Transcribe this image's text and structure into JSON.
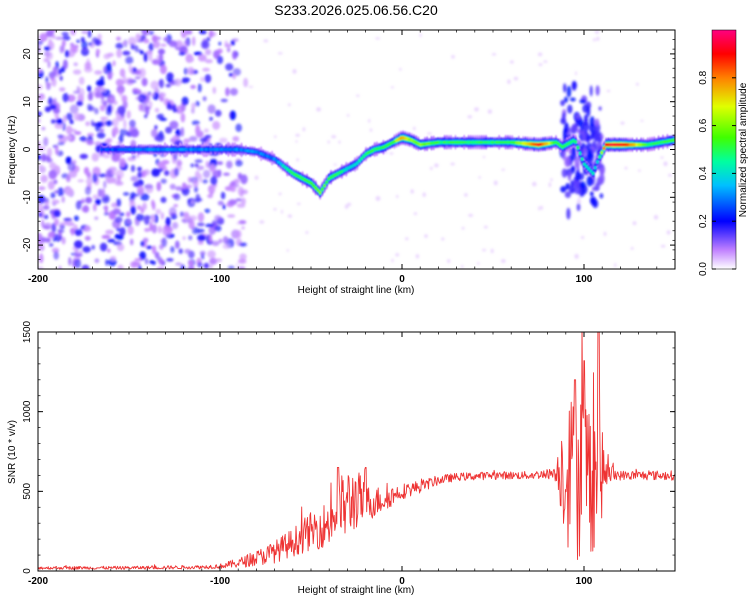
{
  "title": "S233.2026.025.06.56.C20",
  "chart_data": [
    {
      "type": "heatmap",
      "xlabel": "Height of straight line (km)",
      "ylabel": "Frequency (Hz)",
      "xlim": [
        -200,
        150
      ],
      "ylim": [
        -25,
        25
      ],
      "xticks": [
        -200,
        -100,
        0,
        100
      ],
      "yticks": [
        -20,
        -10,
        0,
        10,
        20
      ],
      "colorbar": {
        "label": "Normalized spectral amplitude",
        "range": [
          0,
          1
        ],
        "ticks": [
          "0.0",
          "0.2",
          "0.4",
          "0.6",
          "0.8"
        ],
        "colors": [
          "#ffffff",
          "#c080ff",
          "#0000ff",
          "#00c0ff",
          "#00ffa0",
          "#40ff00",
          "#e0ff00",
          "#ff8000",
          "#ff0000",
          "#ff0080"
        ]
      },
      "ridge": {
        "x": [
          -160,
          -140,
          -120,
          -100,
          -90,
          -80,
          -70,
          -60,
          -50,
          -45,
          -40,
          -35,
          -30,
          -25,
          -20,
          -15,
          -10,
          -5,
          0,
          5,
          10,
          20,
          40,
          60,
          75,
          85,
          88,
          95,
          100,
          105,
          108,
          112,
          120,
          135,
          150
        ],
        "freq": [
          0,
          0,
          0,
          0,
          0,
          -0.5,
          -2,
          -5,
          -7,
          -9,
          -6,
          -5,
          -4,
          -3,
          -1,
          0,
          0.5,
          1.5,
          2.5,
          2,
          1,
          1.5,
          1.5,
          1.5,
          1,
          1.5,
          0.5,
          2,
          -3,
          -5,
          -2,
          1,
          1,
          1,
          2
        ],
        "amplitude": [
          0.25,
          0.3,
          0.3,
          0.3,
          0.3,
          0.3,
          0.3,
          0.5,
          0.5,
          0.6,
          0.5,
          0.5,
          0.4,
          0.4,
          0.5,
          0.5,
          0.5,
          0.5,
          0.8,
          0.6,
          0.6,
          0.5,
          0.5,
          0.5,
          0.9,
          0.5,
          0.5,
          0.5,
          0.4,
          0.4,
          0.4,
          0.9,
          0.95,
          0.5,
          0.5
        ]
      },
      "noise_region": {
        "x": [
          -200,
          -95
        ],
        "freq": [
          -25,
          25
        ]
      },
      "burst_region": {
        "x": [
          88,
          110
        ],
        "freq": [
          -15,
          15
        ]
      }
    },
    {
      "type": "line",
      "xlabel": "Height of straight line (km)",
      "ylabel": "SNR (10 * v/v)",
      "xlim": [
        -200,
        150
      ],
      "ylim": [
        0,
        1500
      ],
      "xticks": [
        -200,
        -100,
        0,
        100
      ],
      "yticks": [
        0,
        500,
        1000,
        1500
      ],
      "series": [
        {
          "color": "#ee3333",
          "x": [
            -200,
            -150,
            -110,
            -100,
            -90,
            -80,
            -70,
            -60,
            -50,
            -40,
            -35,
            -30,
            -25,
            -20,
            -10,
            0,
            10,
            20,
            30,
            50,
            70,
            80,
            85,
            88,
            92,
            96,
            100,
            104,
            108,
            112,
            120,
            150
          ],
          "y": [
            20,
            20,
            25,
            30,
            50,
            80,
            120,
            180,
            250,
            300,
            380,
            420,
            460,
            420,
            450,
            500,
            530,
            570,
            590,
            600,
            600,
            610,
            620,
            650,
            600,
            600,
            650,
            600,
            620,
            610,
            600,
            600
          ],
          "spread": [
            10,
            10,
            12,
            15,
            30,
            50,
            70,
            90,
            120,
            150,
            200,
            230,
            200,
            120,
            80,
            50,
            40,
            30,
            25,
            25,
            25,
            30,
            60,
            350,
            500,
            550,
            550,
            500,
            450,
            80,
            30,
            30
          ],
          "peaks": [
            [
              -35,
              650
            ],
            [
              -20,
              650
            ],
            [
              95,
              1200
            ],
            [
              100,
              1320
            ],
            [
              108,
              1500
            ]
          ]
        }
      ]
    }
  ]
}
